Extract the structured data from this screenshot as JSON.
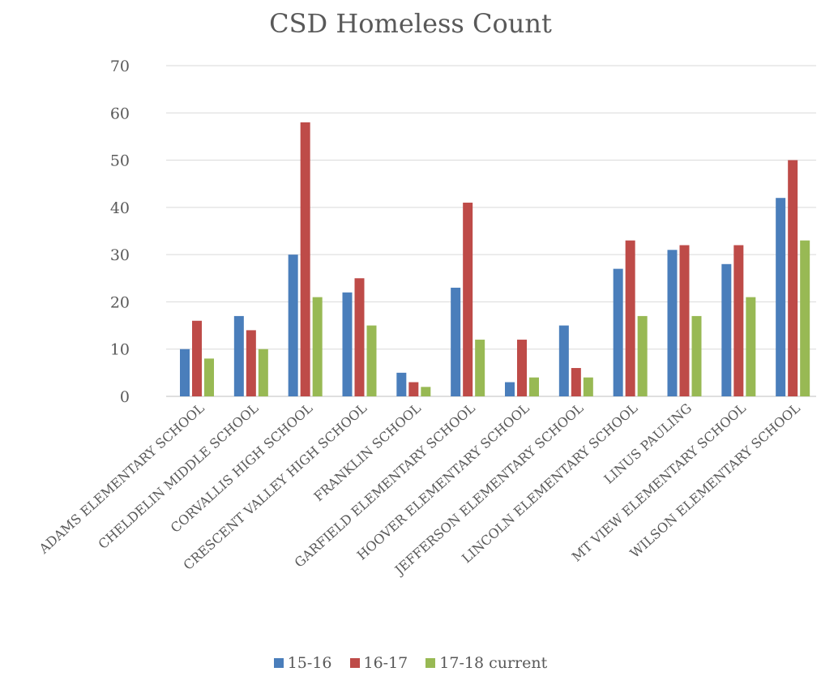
{
  "chart_data": {
    "type": "bar",
    "title": "CSD Homeless Count",
    "xlabel": "",
    "ylabel": "",
    "ylim": [
      0,
      70
    ],
    "yticks": [
      0,
      10,
      20,
      30,
      40,
      50,
      60,
      70
    ],
    "grid": true,
    "legend_position": "bottom",
    "categories": [
      "ADAMS ELEMENTARY SCHOOL",
      "CHELDELIN MIDDLE SCHOOL",
      "CORVALLIS HIGH SCHOOL",
      "CRESCENT VALLEY HIGH SCHOOL",
      "FRANKLIN SCHOOL",
      "GARFIELD ELEMENTARY SCHOOL",
      "HOOVER ELEMENTARY SCHOOL",
      "JEFFERSON ELEMENTARY SCHOOL",
      "LINCOLN ELEMENTARY SCHOOL",
      "LINUS PAULING",
      "MT VIEW ELEMENTARY SCHOOL",
      "WILSON ELEMENTARY SCHOOL"
    ],
    "series": [
      {
        "name": "15-16",
        "color": "#4a7ebb",
        "values": [
          10,
          17,
          30,
          22,
          5,
          23,
          3,
          15,
          27,
          31,
          28,
          42
        ]
      },
      {
        "name": "16-17",
        "color": "#be4b48",
        "values": [
          16,
          14,
          58,
          25,
          3,
          41,
          12,
          6,
          33,
          32,
          32,
          50
        ]
      },
      {
        "name": "17-18 current",
        "color": "#98b954",
        "values": [
          8,
          10,
          21,
          15,
          2,
          12,
          4,
          4,
          17,
          17,
          21,
          33
        ]
      }
    ]
  }
}
